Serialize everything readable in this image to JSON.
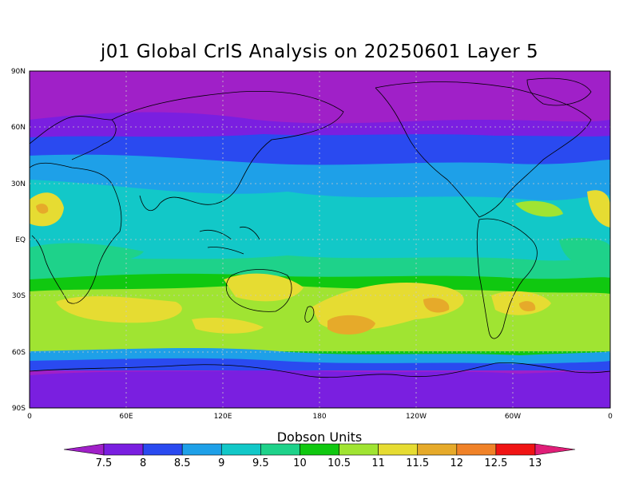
{
  "title": "j01 Global CrIS Analysis on 20250601 Layer 5",
  "colorbar": {
    "title": "Dobson Units",
    "ticks": [
      "7.5",
      "8",
      "8.5",
      "9",
      "9.5",
      "10",
      "10.5",
      "11",
      "11.5",
      "12",
      "12.5",
      "13"
    ],
    "colors": [
      "#a020c8",
      "#7a1fe0",
      "#2a4af0",
      "#1ea0e8",
      "#12c8c8",
      "#1ed28a",
      "#10c810",
      "#a0e432",
      "#e6dc32",
      "#e6aa2a",
      "#f08228",
      "#f01414",
      "#e01e78"
    ]
  },
  "map": {
    "lat_labels": [
      "90N",
      "60N",
      "30N",
      "EQ",
      "30S",
      "60S",
      "90S"
    ],
    "lon_labels": [
      "0",
      "60E",
      "120E",
      "180",
      "120W",
      "60W",
      "0"
    ]
  }
}
